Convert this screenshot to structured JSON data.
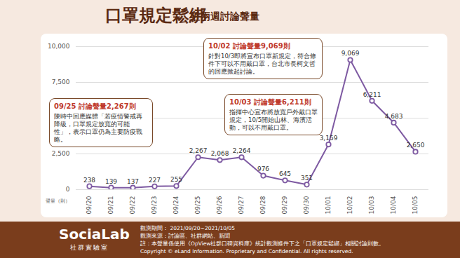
{
  "chart_data": {
    "type": "line",
    "title": "口罩規定鬆綁",
    "subtitle": "近兩週討論聲量",
    "y_label": "聲量（則）",
    "categories": [
      "09/20",
      "09/21",
      "09/22",
      "09/23",
      "09/24",
      "09/25",
      "09/26",
      "09/27",
      "09/28",
      "09/29",
      "09/30",
      "10/01",
      "10/02",
      "10/03",
      "10/04",
      "10/05"
    ],
    "values": [
      238,
      139,
      137,
      227,
      255,
      2267,
      2068,
      2264,
      976,
      645,
      351,
      3159,
      9069,
      6211,
      4683,
      2650
    ],
    "value_labels": [
      "238",
      "139",
      "137",
      "227",
      "255",
      "2,267",
      "2,068",
      "2,264",
      "976",
      "645",
      "351",
      "3,159",
      "9,069",
      "6,211",
      "4,683",
      "2,650"
    ],
    "color": "#7e5aa2",
    "marker": "circle",
    "data_labels": true,
    "grid": true,
    "ylim": [
      0,
      10000
    ],
    "yticks": [
      0,
      {
        "value": 2500,
        "label": "2,500"
      },
      {
        "value": 5000,
        "label": "5,000"
      },
      {
        "value": 7500,
        "label": "7,500"
      },
      {
        "value": 10000,
        "label": "10,000"
      }
    ],
    "annotations": [
      {
        "x": "09/25",
        "title": "09/25 討論聲量2,267則",
        "text": "陳時中回應媒體「若疫情警戒再降級，口罩規定放寬的可能性」，表示口罩仍為主要防疫戰略。"
      },
      {
        "x": "10/02",
        "title": "10/02 討論聲量9,069則",
        "text": "針對10/3即將宣布口罩新規定，符合條件下可以不用戴口罩，台北市長柯文哲的回應掀起討論。"
      },
      {
        "x": "10/03",
        "title": "10/03 討論聲量6,211則",
        "text": "指揮中心宣布將放寬戶外戴口罩規定，10/5開始山林、海濱活動，可以不用戴口罩。"
      }
    ]
  },
  "footer": {
    "logo": "SociaLab",
    "logo_subtitle": "社群實驗室",
    "notes": [
      "觀測期間： 2021/09/20~2021/10/05",
      "觀測來源：討論區、社群網站、新聞",
      "註：本聲量係使用《OpView社群口碑資料庫》統計觀測條件下之「口罩規定鬆綁」相關討論則數。",
      "Copyright © eLand Information. Proprietary and Confidential. All rights reserved."
    ]
  }
}
